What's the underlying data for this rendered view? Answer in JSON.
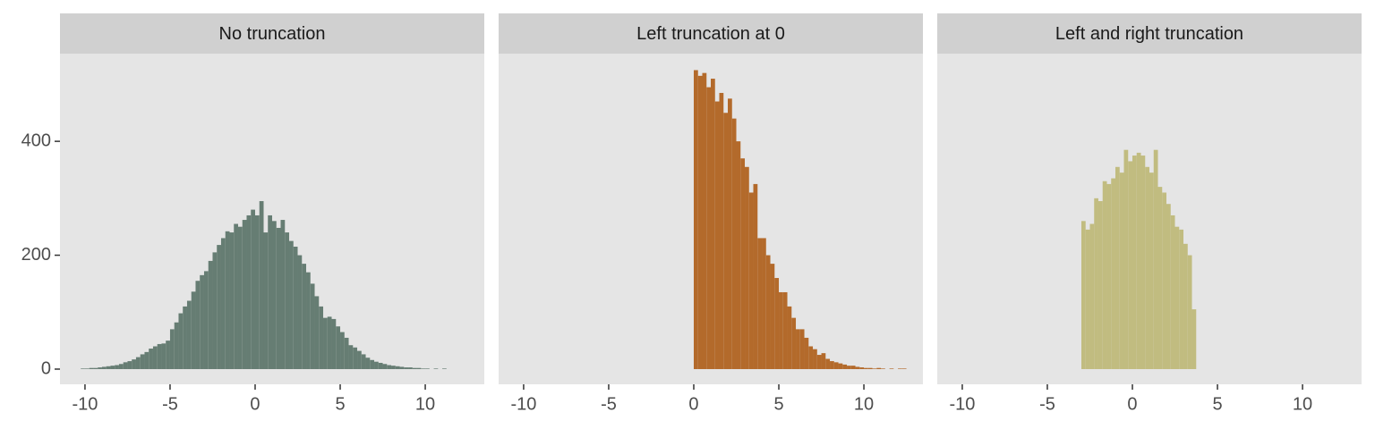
{
  "chart_data": [
    {
      "type": "histogram",
      "title": "No truncation",
      "color": "#667d73",
      "bins": [
        -10.25,
        -10,
        -9.75,
        -9.5,
        -9.25,
        -9,
        -8.75,
        -8.5,
        -8.25,
        -8,
        -7.75,
        -7.5,
        -7.25,
        -7,
        -6.75,
        -6.5,
        -6.25,
        -6,
        -5.75,
        -5.5,
        -5.25,
        -5,
        -4.75,
        -4.5,
        -4.25,
        -4,
        -3.75,
        -3.5,
        -3.25,
        -3,
        -2.75,
        -2.5,
        -2.25,
        -2,
        -1.75,
        -1.5,
        -1.25,
        -1,
        -0.75,
        -0.5,
        -0.25,
        0,
        0.25,
        0.5,
        0.75,
        1,
        1.25,
        1.5,
        1.75,
        2,
        2.25,
        2.5,
        2.75,
        3,
        3.25,
        3.5,
        3.75,
        4,
        4.25,
        4.5,
        4.75,
        5,
        5.25,
        5.5,
        5.75,
        6,
        6.25,
        6.5,
        6.75,
        7,
        7.25,
        7.5,
        7.75,
        8,
        8.25,
        8.5,
        8.75,
        9,
        9.25,
        9.5,
        9.75,
        10,
        10.25,
        10.5,
        10.75,
        11,
        11.25
      ],
      "counts": [
        1,
        1,
        2,
        2,
        3,
        4,
        5,
        6,
        7,
        9,
        12,
        14,
        17,
        21,
        26,
        30,
        36,
        40,
        44,
        45,
        50,
        70,
        82,
        98,
        110,
        120,
        136,
        155,
        165,
        172,
        190,
        205,
        218,
        230,
        242,
        240,
        255,
        250,
        262,
        270,
        280,
        270,
        295,
        240,
        270,
        260,
        248,
        262,
        240,
        225,
        215,
        200,
        185,
        170,
        150,
        128,
        110,
        90,
        92,
        88,
        75,
        65,
        55,
        42,
        38,
        32,
        26,
        20,
        16,
        13,
        11,
        9,
        7,
        6,
        5,
        4,
        3,
        3,
        2,
        2,
        1,
        1,
        0,
        1,
        0,
        1
      ],
      "xlim": [
        -11.47,
        13.47
      ],
      "ylim": [
        -26.7,
        554
      ],
      "xticks": [
        -10,
        -5,
        0,
        5,
        10
      ],
      "yticks": [
        0,
        200,
        400
      ]
    },
    {
      "type": "histogram",
      "title": "Left truncation at 0",
      "color": "#b36a2b",
      "bins": [
        0,
        0.25,
        0.5,
        0.75,
        1,
        1.25,
        1.5,
        1.75,
        2,
        2.25,
        2.5,
        2.75,
        3,
        3.25,
        3.5,
        3.75,
        4,
        4.25,
        4.5,
        4.75,
        5,
        5.25,
        5.5,
        5.75,
        6,
        6.25,
        6.5,
        6.75,
        7,
        7.25,
        7.5,
        7.75,
        8,
        8.25,
        8.5,
        8.75,
        9,
        9.25,
        9.5,
        9.75,
        10,
        10.25,
        10.5,
        10.75,
        11,
        11.25,
        11.5,
        11.75,
        12,
        12.25,
        12.5
      ],
      "counts": [
        525,
        515,
        520,
        495,
        510,
        470,
        485,
        450,
        475,
        440,
        400,
        370,
        355,
        310,
        325,
        230,
        230,
        200,
        185,
        160,
        135,
        135,
        110,
        90,
        70,
        70,
        55,
        40,
        35,
        25,
        28,
        18,
        14,
        12,
        10,
        8,
        6,
        6,
        4,
        3,
        2,
        2,
        1,
        2,
        1,
        0,
        1,
        0,
        1,
        1
      ],
      "xlim": [
        -11.47,
        13.47
      ],
      "ylim": [
        -26.7,
        554
      ],
      "xticks": [
        -10,
        -5,
        0,
        5,
        10
      ]
    },
    {
      "type": "histogram",
      "title": "Left and right truncation",
      "color": "#c1bc80",
      "bins": [
        -3,
        -2.75,
        -2.5,
        -2.25,
        -2,
        -1.75,
        -1.5,
        -1.25,
        -1,
        -0.75,
        -0.5,
        -0.25,
        0,
        0.25,
        0.5,
        0.75,
        1,
        1.25,
        1.5,
        1.75,
        2,
        2.25,
        2.5,
        2.75,
        3,
        3.25,
        3.5,
        3.75
      ],
      "counts": [
        260,
        245,
        255,
        300,
        295,
        330,
        325,
        335,
        355,
        345,
        385,
        365,
        375,
        380,
        375,
        355,
        345,
        385,
        320,
        310,
        290,
        270,
        250,
        245,
        220,
        200,
        105
      ],
      "xlim": [
        -11.47,
        13.47
      ],
      "ylim": [
        -26.7,
        554
      ],
      "xticks": [
        -10,
        -5,
        0,
        5,
        10
      ]
    }
  ]
}
